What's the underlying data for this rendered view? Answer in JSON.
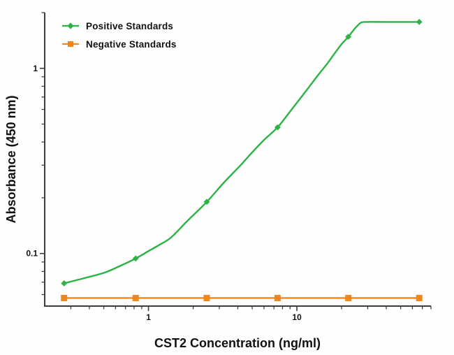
{
  "figure": {
    "background": "#fefefe",
    "axis_color": "#3d3d3d",
    "text_color": "#111111"
  },
  "legend": {
    "position": "top-left",
    "items": [
      {
        "label": "Positive Standards",
        "marker": "diamond",
        "color": "#2db245"
      },
      {
        "label": "Negative Standards",
        "marker": "square",
        "color": "#f0861c"
      }
    ]
  },
  "chart_data": {
    "type": "line",
    "title": "",
    "xlabel": "CST2 Concentration (ng/ml)",
    "ylabel": "Absorbance (450 nm)",
    "x_scale": "log",
    "y_scale": "log",
    "xlim": [
      0.2,
      80
    ],
    "ylim": [
      0.052,
      2.0
    ],
    "grid": false,
    "legend_position": "top-left",
    "x_major_ticks": [
      {
        "value": 1,
        "label": "1"
      },
      {
        "value": 10,
        "label": "10"
      }
    ],
    "x_minor_ticks": [
      0.3,
      0.4,
      0.5,
      0.6,
      0.7,
      0.8,
      0.9,
      2,
      3,
      4,
      5,
      6,
      7,
      8,
      9,
      20,
      30,
      40,
      50,
      60,
      70,
      80
    ],
    "y_major_ticks": [
      {
        "value": 1,
        "label": "1"
      },
      {
        "value": 0.1,
        "label": "0.1"
      }
    ],
    "y_minor_ticks": [
      2,
      0.9,
      0.8,
      0.7,
      0.6,
      0.5,
      0.4,
      0.3,
      0.2,
      0.09,
      0.08,
      0.07,
      0.06
    ],
    "series": [
      {
        "name": "Positive Standards",
        "color": "#2db245",
        "marker": "diamond",
        "points": [
          [
            0.27,
            0.069
          ],
          [
            0.82,
            0.094
          ],
          [
            2.47,
            0.19
          ],
          [
            7.41,
            0.48
          ],
          [
            22.2,
            1.48
          ],
          [
            66.7,
            1.78
          ]
        ],
        "curve": [
          [
            0.27,
            0.069
          ],
          [
            0.38,
            0.074
          ],
          [
            0.51,
            0.079
          ],
          [
            0.65,
            0.086
          ],
          [
            0.82,
            0.094
          ],
          [
            1.0,
            0.103
          ],
          [
            1.2,
            0.112
          ],
          [
            1.42,
            0.122
          ],
          [
            1.8,
            0.148
          ],
          [
            2.47,
            0.19
          ],
          [
            3.2,
            0.24
          ],
          [
            4.18,
            0.3
          ],
          [
            4.97,
            0.35
          ],
          [
            6.0,
            0.41
          ],
          [
            7.41,
            0.48
          ],
          [
            8.93,
            0.58
          ],
          [
            11.3,
            0.74
          ],
          [
            13.9,
            0.92
          ],
          [
            16.0,
            1.06
          ],
          [
            17.9,
            1.2
          ],
          [
            20.0,
            1.35
          ],
          [
            22.2,
            1.48
          ],
          [
            24.4,
            1.63
          ],
          [
            25.8,
            1.71
          ],
          [
            27.2,
            1.77
          ],
          [
            29.4,
            1.78
          ],
          [
            38.0,
            1.78
          ],
          [
            50.0,
            1.78
          ],
          [
            66.7,
            1.78
          ]
        ]
      },
      {
        "name": "Negative Standards",
        "color": "#f0861c",
        "marker": "square",
        "points": [
          [
            0.27,
            0.0575
          ],
          [
            0.82,
            0.0575
          ],
          [
            2.47,
            0.0575
          ],
          [
            7.41,
            0.0575
          ],
          [
            22.2,
            0.0575
          ],
          [
            66.7,
            0.0575
          ]
        ],
        "curve": [
          [
            0.27,
            0.0575
          ],
          [
            66.7,
            0.0575
          ]
        ]
      }
    ]
  }
}
